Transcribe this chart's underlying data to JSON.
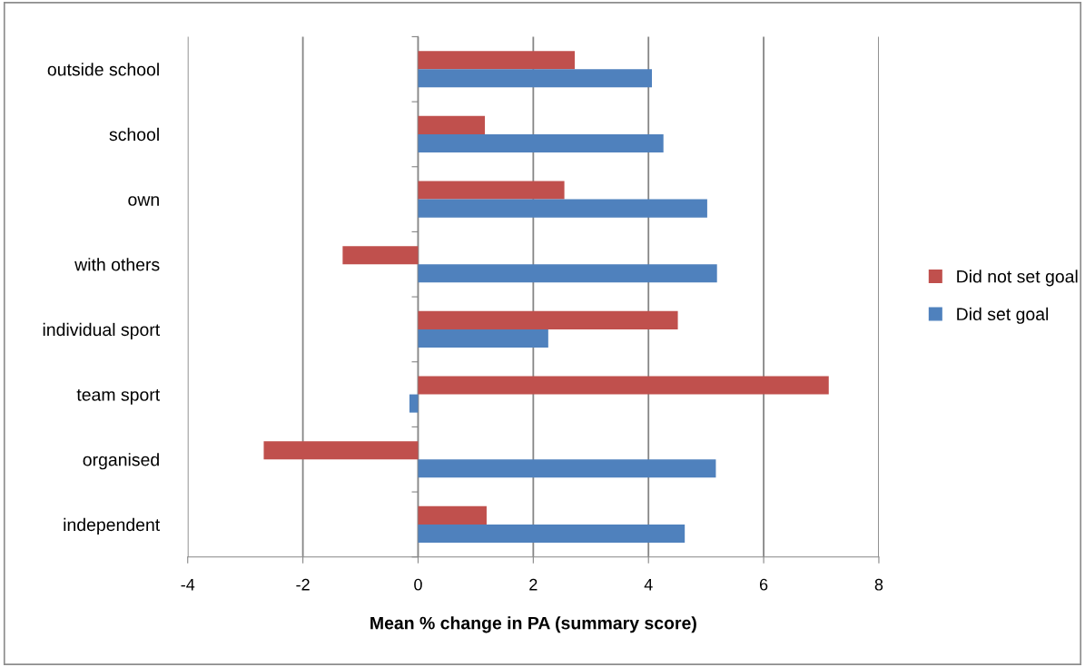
{
  "chart_data": {
    "type": "bar",
    "orientation": "horizontal",
    "xlabel": "Mean % change in PA (summary score)",
    "categories": [
      "outside school",
      "school",
      "own",
      "with others",
      "individual sport",
      "team sport",
      "organised",
      "independent"
    ],
    "series": [
      {
        "name": "Did not set goal",
        "color": "#c0504d",
        "values": [
          2.72,
          1.16,
          2.54,
          -1.31,
          4.51,
          7.13,
          -2.68,
          1.19
        ]
      },
      {
        "name": "Did set goal",
        "color": "#4f81bd",
        "values": [
          4.06,
          4.26,
          5.02,
          5.19,
          2.26,
          -0.15,
          5.17,
          4.63
        ]
      }
    ],
    "xlim": [
      -4,
      8
    ],
    "xticks": [
      -4,
      -2,
      0,
      2,
      4,
      6,
      8
    ],
    "grid": "x",
    "legend": "right"
  }
}
